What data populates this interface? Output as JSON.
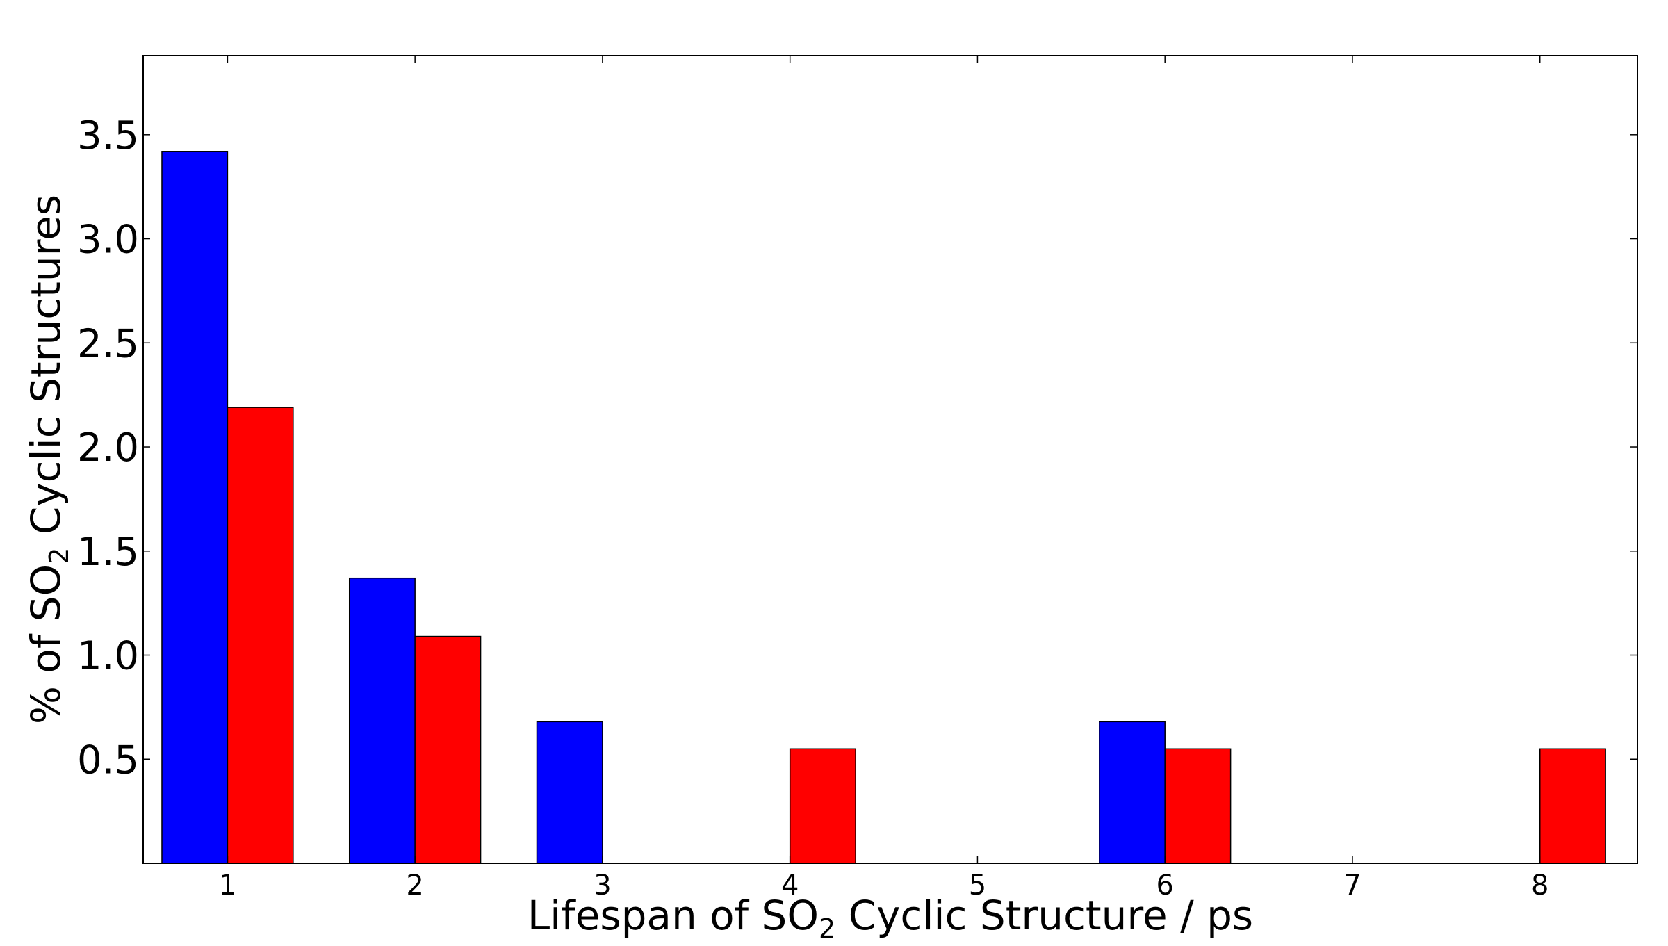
{
  "chart_data": {
    "type": "bar",
    "title": "",
    "xlabel": {
      "prefix": "Lifespan of SO",
      "subscript": "2",
      "suffix": " Cyclic Structure / ps"
    },
    "ylabel": {
      "prefix": "% of SO",
      "subscript": "2",
      "suffix": " Cyclic Structures"
    },
    "categories": [
      "1",
      "2",
      "3",
      "4",
      "5",
      "6",
      "7",
      "8"
    ],
    "x": [
      1,
      2,
      3,
      4,
      5,
      6,
      7,
      8
    ],
    "xlim": [
      0.55,
      8.52
    ],
    "ylim": [
      0,
      3.88
    ],
    "yticks": [
      0.5,
      1.0,
      1.5,
      2.0,
      2.5,
      3.0,
      3.5
    ],
    "ytick_labels": [
      "0.5",
      "1.0",
      "1.5",
      "2.0",
      "2.5",
      "3.0",
      "3.5"
    ],
    "grid": false,
    "series": [
      {
        "color": "#0000ff",
        "offset": -0.35,
        "width": 0.35,
        "values": [
          3.42,
          1.37,
          0.68,
          null,
          null,
          0.68,
          null,
          null
        ]
      },
      {
        "color": "#ff0000",
        "offset": 0,
        "width": 0.35,
        "values": [
          2.19,
          1.09,
          null,
          0.55,
          null,
          0.55,
          null,
          0.55
        ]
      }
    ]
  }
}
